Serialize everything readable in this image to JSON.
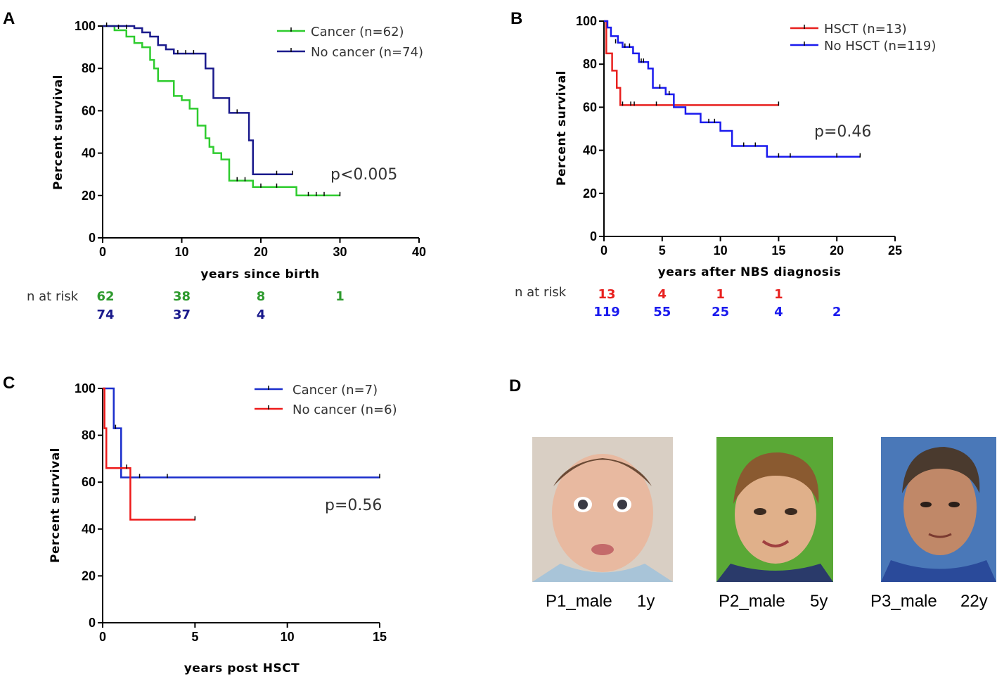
{
  "figure": {
    "panel_letters": [
      "A",
      "B",
      "C",
      "D"
    ]
  },
  "chart_data": [
    {
      "panel": "A",
      "type": "line",
      "subtype": "kaplan-meier",
      "xlabel": "years since birth",
      "ylabel": "Percent survival",
      "xlim": [
        0,
        40
      ],
      "ylim": [
        0,
        100
      ],
      "xticks": [
        0,
        10,
        20,
        30,
        40
      ],
      "yticks": [
        0,
        20,
        40,
        60,
        80,
        100
      ],
      "p_value": "p<0.005",
      "series": [
        {
          "name": "Cancer (n=62)",
          "color": "#2ecc2e",
          "x": [
            0,
            1.5,
            3,
            4,
            5,
            6,
            6.5,
            7,
            9,
            10,
            11,
            12,
            13,
            13.5,
            14,
            15,
            16,
            30
          ],
          "y": [
            100,
            98,
            95,
            92,
            90,
            84,
            80,
            74,
            67,
            65,
            61,
            53,
            47,
            43,
            40,
            37,
            27,
            27
          ],
          "steps": [
            [
              0,
              100
            ],
            [
              1.5,
              98
            ],
            [
              3,
              95
            ],
            [
              4,
              92
            ],
            [
              5,
              90
            ],
            [
              6,
              84
            ],
            [
              6.5,
              80
            ],
            [
              7,
              74
            ],
            [
              9,
              67
            ],
            [
              10,
              65
            ],
            [
              11,
              61
            ],
            [
              12,
              53
            ],
            [
              13,
              47
            ],
            [
              13.5,
              43
            ],
            [
              14,
              40
            ],
            [
              15,
              37
            ],
            [
              16,
              27
            ],
            [
              19,
              24
            ],
            [
              24,
              24
            ],
            [
              24.5,
              20
            ],
            [
              30,
              20
            ]
          ],
          "censors": [
            [
              17,
              27
            ],
            [
              18,
              27
            ],
            [
              20,
              24
            ],
            [
              22,
              24
            ],
            [
              26,
              20
            ],
            [
              27,
              20
            ],
            [
              28,
              20
            ],
            [
              30,
              20
            ]
          ]
        },
        {
          "name": "No cancer (n=74)",
          "color": "#1a1a8c",
          "steps": [
            [
              0,
              100
            ],
            [
              4,
              99
            ],
            [
              5,
              97
            ],
            [
              6,
              95
            ],
            [
              7,
              91
            ],
            [
              8,
              89
            ],
            [
              9,
              87
            ],
            [
              13,
              80
            ],
            [
              14,
              66
            ],
            [
              16,
              59
            ],
            [
              18.5,
              46
            ],
            [
              19,
              30
            ],
            [
              24,
              30
            ]
          ],
          "censors": [
            [
              0.5,
              100
            ],
            [
              2,
              99
            ],
            [
              3,
              99
            ],
            [
              9.5,
              87
            ],
            [
              10.5,
              87
            ],
            [
              11.5,
              87
            ],
            [
              17,
              59
            ],
            [
              22,
              30
            ],
            [
              24,
              30
            ]
          ]
        }
      ],
      "risk_table": {
        "header": "n at risk",
        "times": [
          0,
          10,
          20,
          30
        ],
        "rows": [
          {
            "color": "#2e9a2e",
            "values": [
              "62",
              "38",
              "8",
              "1"
            ]
          },
          {
            "color": "#1a1a8c",
            "values": [
              "74",
              "37",
              "4",
              ""
            ]
          }
        ]
      }
    },
    {
      "panel": "B",
      "type": "line",
      "subtype": "kaplan-meier",
      "xlabel": "years after NBS diagnosis",
      "ylabel": "Percent survival",
      "xlim": [
        0,
        25
      ],
      "ylim": [
        0,
        100
      ],
      "xticks": [
        0,
        5,
        10,
        15,
        20,
        25
      ],
      "yticks": [
        0,
        20,
        40,
        60,
        80,
        100
      ],
      "p_value": "p=0.46",
      "series": [
        {
          "name": "HSCT (n=13)",
          "color": "#e8201e",
          "steps": [
            [
              0,
              100
            ],
            [
              0.2,
              85
            ],
            [
              0.7,
              77
            ],
            [
              1.1,
              69
            ],
            [
              1.4,
              61
            ],
            [
              15,
              61
            ]
          ],
          "censors": [
            [
              1.6,
              61
            ],
            [
              2.3,
              61
            ],
            [
              2.6,
              61
            ],
            [
              4.5,
              61
            ],
            [
              15,
              61
            ]
          ]
        },
        {
          "name": "No HSCT (n=119)",
          "color": "#1a1aee",
          "steps": [
            [
              0,
              100
            ],
            [
              0.3,
              97
            ],
            [
              0.6,
              93
            ],
            [
              1.2,
              90
            ],
            [
              1.6,
              88
            ],
            [
              2.5,
              85
            ],
            [
              3,
              81
            ],
            [
              3.8,
              78
            ],
            [
              4.2,
              69
            ],
            [
              5.3,
              66
            ],
            [
              6,
              60
            ],
            [
              7,
              57
            ],
            [
              8.3,
              53
            ],
            [
              10,
              49
            ],
            [
              10.5,
              49
            ],
            [
              11,
              42
            ],
            [
              14,
              37
            ],
            [
              22,
              37
            ]
          ],
          "censors": [
            [
              1,
              90
            ],
            [
              1.8,
              88
            ],
            [
              2.2,
              88
            ],
            [
              3.2,
              81
            ],
            [
              3.4,
              81
            ],
            [
              4.8,
              69
            ],
            [
              5.6,
              66
            ],
            [
              9,
              53
            ],
            [
              9.5,
              53
            ],
            [
              12,
              42
            ],
            [
              13,
              42
            ],
            [
              15,
              37
            ],
            [
              16,
              37
            ],
            [
              20,
              37
            ],
            [
              22,
              37
            ]
          ]
        }
      ],
      "risk_table": {
        "header": "n at risk",
        "times": [
          0,
          5,
          10,
          15,
          20
        ],
        "rows": [
          {
            "color": "#e8201e",
            "values": [
              "13",
              "4",
              "1",
              "1",
              ""
            ]
          },
          {
            "color": "#1a1aee",
            "values": [
              "119",
              "55",
              "25",
              "4",
              "2"
            ]
          }
        ]
      }
    },
    {
      "panel": "C",
      "type": "line",
      "subtype": "kaplan-meier",
      "xlabel": "years post HSCT",
      "ylabel": "Percent survival",
      "xlim": [
        0,
        15
      ],
      "ylim": [
        0,
        100
      ],
      "xticks": [
        0,
        5,
        10,
        15
      ],
      "yticks": [
        0,
        20,
        40,
        60,
        80,
        100
      ],
      "p_value": "p=0.56",
      "series": [
        {
          "name": "Cancer (n=7)",
          "color": "#1a2ecc",
          "steps": [
            [
              0,
              100
            ],
            [
              0.6,
              83
            ],
            [
              1,
              62
            ],
            [
              15,
              62
            ]
          ],
          "censors": [
            [
              0.7,
              83
            ],
            [
              2,
              62
            ],
            [
              3.5,
              62
            ],
            [
              15,
              62
            ]
          ]
        },
        {
          "name": "No cancer (n=6)",
          "color": "#ee1a1a",
          "steps": [
            [
              0,
              100
            ],
            [
              0.1,
              83
            ],
            [
              0.2,
              66
            ],
            [
              1.5,
              44
            ],
            [
              5,
              44
            ]
          ],
          "censors": [
            [
              1.3,
              66
            ],
            [
              5,
              44
            ]
          ]
        }
      ]
    }
  ],
  "photos": [
    {
      "label": "P1_male",
      "age": "1y",
      "tone": "#e8b9a0",
      "bg": "#d9cfc4"
    },
    {
      "label": "P2_male",
      "age": "5y",
      "tone": "#e0b08a",
      "bg": "#5aa836"
    },
    {
      "label": "P3_male",
      "age": "22y",
      "tone": "#c08868",
      "bg": "#4a78b8"
    }
  ]
}
